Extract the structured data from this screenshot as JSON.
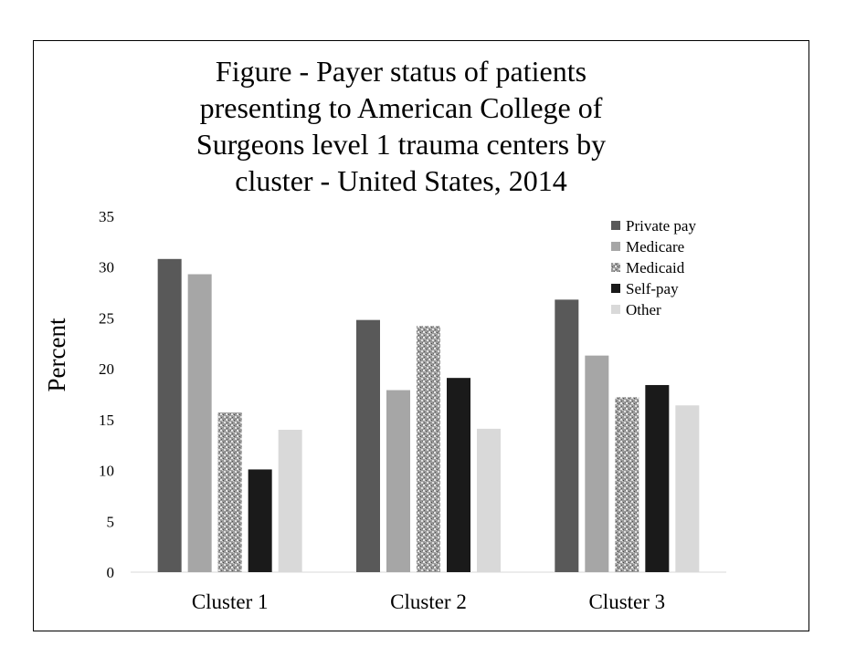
{
  "chart_data": {
    "type": "bar",
    "title_lines": [
      "Figure - Payer status of patients",
      "presenting to American College of",
      "Surgeons level 1 trauma centers by",
      "cluster - United States, 2014"
    ],
    "xlabel": "",
    "ylabel": "Percent",
    "ylim": [
      0,
      35
    ],
    "yticks": [
      "0",
      "5",
      "10",
      "15",
      "20",
      "25",
      "30",
      "35"
    ],
    "categories": [
      "Cluster 1",
      "Cluster 2",
      "Cluster 3"
    ],
    "grid": false,
    "legend_position": "top-right",
    "series": [
      {
        "name": "Private pay",
        "color": "#595959",
        "pattern": "solid",
        "values": [
          30.8,
          24.8,
          26.8
        ]
      },
      {
        "name": "Medicare",
        "color": "#a6a6a6",
        "pattern": "solid",
        "values": [
          29.3,
          17.9,
          21.3
        ]
      },
      {
        "name": "Medicaid",
        "color": "#8c8c8c",
        "pattern": "speckle",
        "values": [
          15.7,
          24.2,
          17.2
        ]
      },
      {
        "name": "Self-pay",
        "color": "#1a1a1a",
        "pattern": "solid",
        "values": [
          10.1,
          19.1,
          18.4
        ]
      },
      {
        "name": "Other",
        "color": "#d9d9d9",
        "pattern": "solid",
        "values": [
          14.0,
          14.1,
          16.4
        ]
      }
    ]
  }
}
